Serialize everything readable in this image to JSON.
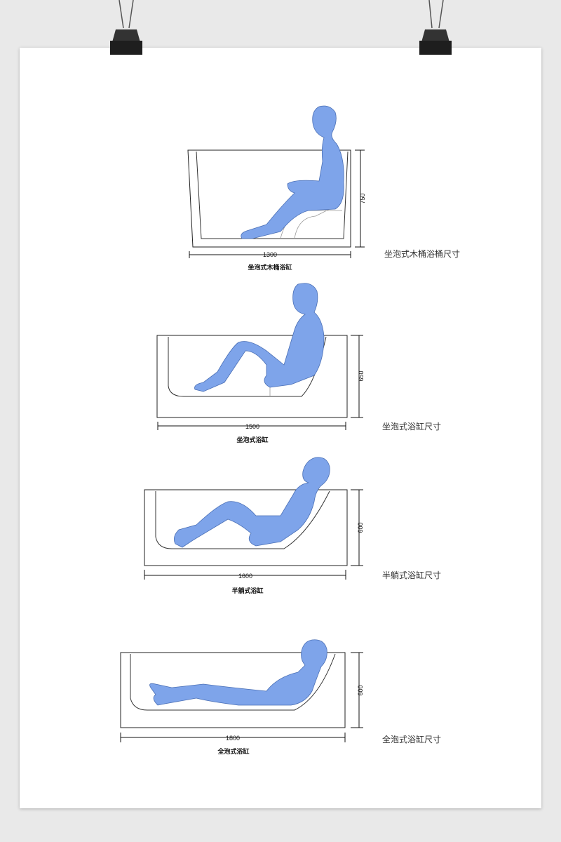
{
  "colors": {
    "figure": "#7ea4ea",
    "paper": "#ffffff",
    "background": "#e9e9e9",
    "binder_clip": "#222222"
  },
  "tubs": [
    {
      "width": "1300",
      "height": "750",
      "caption": "坐泡式木桶浴缸",
      "side_label": "坐泡式木桶浴桶尺寸"
    },
    {
      "width": "1500",
      "height": "650",
      "caption": "坐泡式浴缸",
      "side_label": "坐泡式浴缸尺寸"
    },
    {
      "width": "1600",
      "height": "600",
      "caption": "半躺式浴缸",
      "side_label": "半躺式浴缸尺寸"
    },
    {
      "width": "1800",
      "height": "600",
      "caption": "全泡式浴缸",
      "side_label": "全泡式浴缸尺寸"
    }
  ]
}
